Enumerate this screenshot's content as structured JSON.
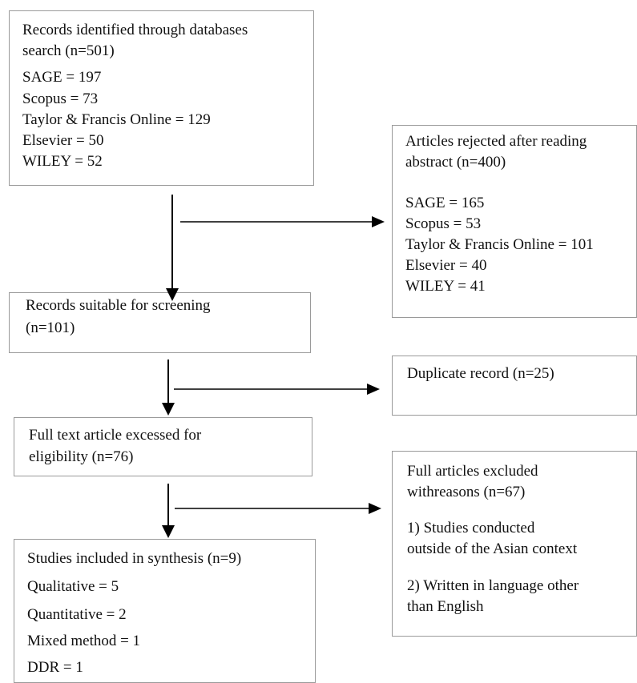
{
  "boxes": {
    "identified": {
      "lines": [
        "Records identified through databases",
        "search (n=501)",
        "SAGE = 197",
        "Scopus = 73",
        "Taylor & Francis Online = 129",
        "Elsevier = 50",
        "WILEY = 52"
      ]
    },
    "rejected_abstract": {
      "lines": [
        "Articles rejected after reading",
        "abstract (n=400)",
        "SAGE = 165",
        "Scopus = 53",
        "Taylor & Francis Online = 101",
        "Elsevier = 40",
        "WILEY = 41"
      ]
    },
    "screening": {
      "lines": [
        "Records suitable for screening",
        "(n=101)"
      ]
    },
    "duplicate": {
      "lines": [
        "Duplicate record (n=25)"
      ]
    },
    "eligibility": {
      "lines": [
        "Full text article excessed for",
        "eligibility (n=76)"
      ]
    },
    "excluded": {
      "lines": [
        "Full articles excluded",
        "withreasons (n=67)",
        "1) Studies conducted",
        "outside of the Asian context",
        "2) Written in language other",
        "than English"
      ]
    },
    "included": {
      "lines": [
        "Studies included in synthesis (n=9)",
        "Qualitative = 5",
        "Quantitative = 2",
        "Mixed method = 1",
        "DDR = 1"
      ]
    }
  }
}
